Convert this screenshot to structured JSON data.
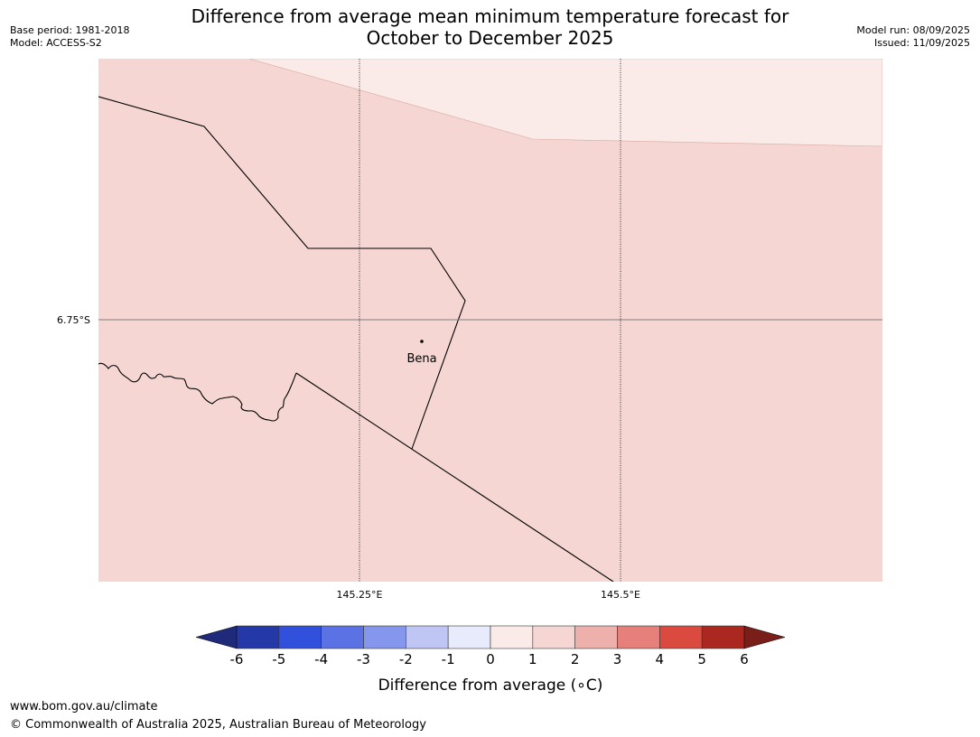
{
  "title": {
    "line1": "Difference from average mean minimum temperature forecast for",
    "line2": "October to December 2025"
  },
  "meta": {
    "base_period": "Base period: 1981-2018",
    "model": "Model: ACCESS-S2",
    "model_run": "Model run: 08/09/2025",
    "issued": "Issued: 11/09/2025"
  },
  "map": {
    "colors": {
      "anomaly_0_1": "#fbebe8",
      "anomaly_1_2": "#f5d6d3",
      "boundary": "#000000",
      "grid": "#000000",
      "lat_line": "#7f7f7f"
    },
    "lat_label": "6.75°S",
    "lon_labels": [
      "145.25°E",
      "145.5°E"
    ],
    "place": {
      "name": "Bena"
    }
  },
  "colorbar": {
    "label": "Difference from average (∘C)",
    "ticks": [
      "-6",
      "-5",
      "-4",
      "-3",
      "-2",
      "-1",
      "0",
      "1",
      "2",
      "3",
      "4",
      "5",
      "6"
    ],
    "extend_low_color": "#1f2a7a",
    "extend_high_color": "#7a1e1a",
    "colors": [
      "#2438a8",
      "#3150dc",
      "#5a72e4",
      "#8497ec",
      "#c0c6f4",
      "#e8ebfc",
      "#fbebe8",
      "#f5d6d3",
      "#eeb0ab",
      "#e5807a",
      "#db4a3e",
      "#aa2820"
    ]
  },
  "footer": {
    "url": "www.bom.gov.au/climate",
    "copyright": "© Commonwealth of Australia 2025, Australian Bureau of Meteorology"
  }
}
